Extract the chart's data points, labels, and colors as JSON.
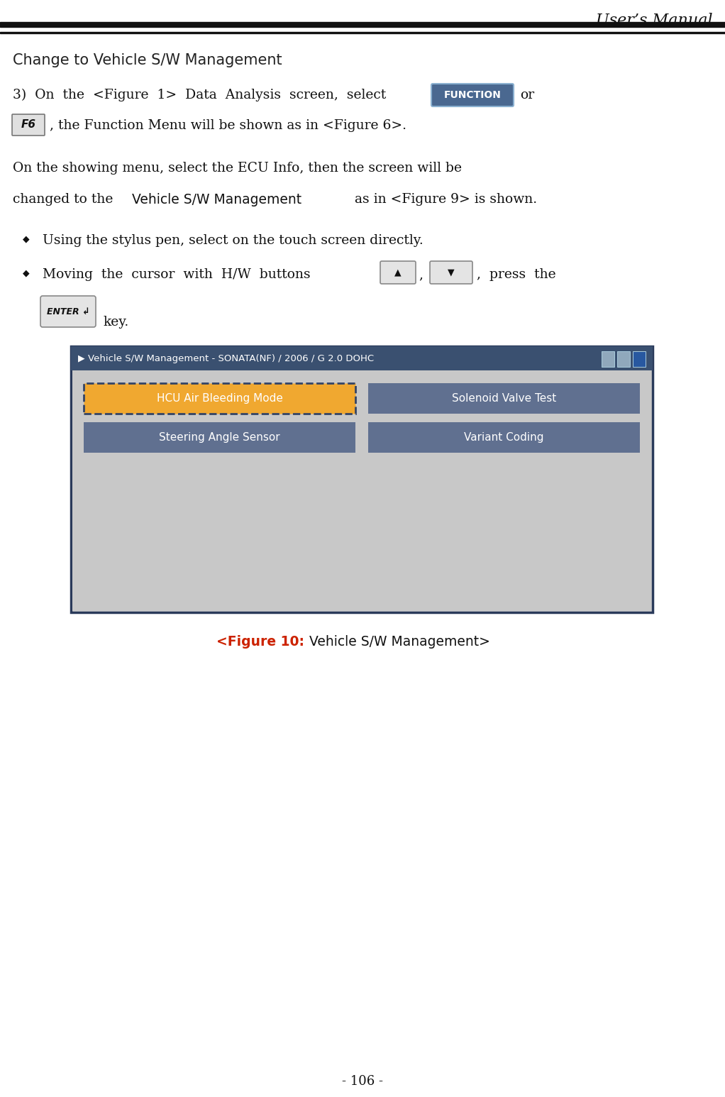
{
  "title": "User’s Manual",
  "page_num": "- 106 -",
  "section_title": "Change to Vehicle S/W Management",
  "line1": "3)  On  the  <Figure  1>  Data  Analysis  screen,  select",
  "line1b": "or",
  "line2": ", the Function Menu will be shown as in <Figure 6>.",
  "para1_line1": "On the showing menu, select the ECU Info, then the screen will be",
  "para1_line2_pre": "changed to the ",
  "para1_line2_mid": "Vehicle S/W Management",
  "para1_line2_post": " as in <Figure 9> is shown.",
  "bullet1": "Using the stylus pen, select on the touch screen directly.",
  "bullet2_pre": "Moving  the  cursor  with  H/W  buttons",
  "bullet2_post": ",  press  the",
  "enter_label": "key.",
  "function_btn_text": "FUNCTION",
  "f6_text": "F6",
  "up_arrow": "▲",
  "down_arrow": "▼",
  "enter_text": "ENTER ↲",
  "bullet_char": "◆",
  "tri_right": "▶",
  "screen_title": "Vehicle S/W Management - SONATA(NF) / 2006 / G 2.0 DOHC",
  "btn_hcu": "HCU Air Bleeding Mode",
  "btn_solenoid": "Solenoid Valve Test",
  "btn_steering": "Steering Angle Sensor",
  "btn_variant": "Variant Coding",
  "caption_red": "<Figure 10:",
  "caption_black": " Vehicle S/W Management>",
  "bg_color": "#ffffff",
  "title_bar_bg": "#3a5070",
  "screen_bg": "#c8c8c8",
  "btn_orange_bg": "#f0a830",
  "btn_blue_bg": "#607090",
  "btn_text_color": "#ffffff",
  "caption_red_color": "#cc2200",
  "section_title_color": "#222222",
  "body_text_color": "#111111",
  "func_btn_color": "#4a6890",
  "func_btn_edge": "#8ab0d0",
  "icon_colors": [
    "#90a8bc",
    "#90a8bc",
    "#2858a0"
  ]
}
